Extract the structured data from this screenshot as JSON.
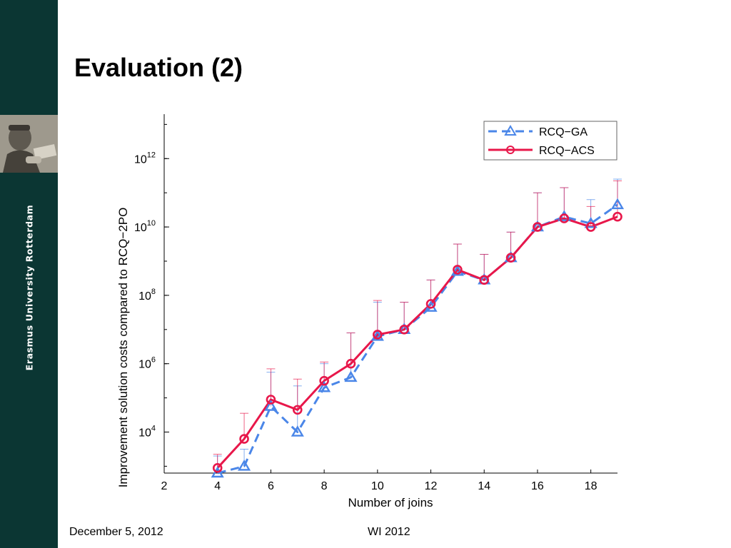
{
  "slide": {
    "title": "Evaluation (2)",
    "footer_date": "December 5, 2012",
    "footer_event": "WI 2012"
  },
  "sidebar": {
    "university": "Erasmus University Rotterdam",
    "background_color": "#0b3633",
    "portrait_icon": "erasmus-portrait-icon"
  },
  "chart_data": {
    "type": "line",
    "xlabel": "Number of joins",
    "ylabel": "Improvement solution costs compared to RCQ−2PO",
    "xlim": [
      2,
      19
    ],
    "ylim_log10": [
      2.8,
      13.3
    ],
    "y_scale": "log",
    "x_ticks": [
      "2",
      "4",
      "6",
      "8",
      "10",
      "12",
      "14",
      "16",
      "18"
    ],
    "y_ticks": [
      {
        "base": "10",
        "exp": "4"
      },
      {
        "base": "10",
        "exp": "6"
      },
      {
        "base": "10",
        "exp": "8"
      },
      {
        "base": "10",
        "exp": "10"
      },
      {
        "base": "10",
        "exp": "12"
      }
    ],
    "grid": false,
    "legend_position": "top-right",
    "x": [
      4,
      5,
      6,
      7,
      8,
      9,
      10,
      11,
      12,
      13,
      14,
      15,
      16,
      17,
      18,
      19
    ],
    "series": [
      {
        "name": "RCQ−GA",
        "color": "#4a86e8",
        "style": "dashed",
        "marker": "triangle",
        "log10_values": [
          2.8,
          3.0,
          4.75,
          4.0,
          5.3,
          5.6,
          6.8,
          7.0,
          7.65,
          8.7,
          8.45,
          9.1,
          10.0,
          10.3,
          10.1,
          10.65
        ],
        "log10_error_top": [
          3.3,
          3.5,
          5.75,
          5.35,
          6.0,
          6.9,
          7.8,
          7.8,
          8.45,
          9.5,
          9.2,
          9.85,
          11.0,
          11.15,
          10.8,
          11.4
        ]
      },
      {
        "name": "RCQ−ACS",
        "color": "#e8174a",
        "style": "solid",
        "marker": "circle",
        "log10_values": [
          2.95,
          3.8,
          4.95,
          4.65,
          5.5,
          6.0,
          6.85,
          7.0,
          7.75,
          8.75,
          8.45,
          9.1,
          10.0,
          10.25,
          10.0,
          10.3
        ],
        "log10_error_top": [
          3.35,
          4.55,
          5.85,
          5.55,
          6.05,
          6.9,
          7.85,
          7.8,
          8.45,
          9.5,
          9.2,
          9.85,
          11.0,
          11.15,
          10.6,
          11.35
        ]
      }
    ]
  }
}
